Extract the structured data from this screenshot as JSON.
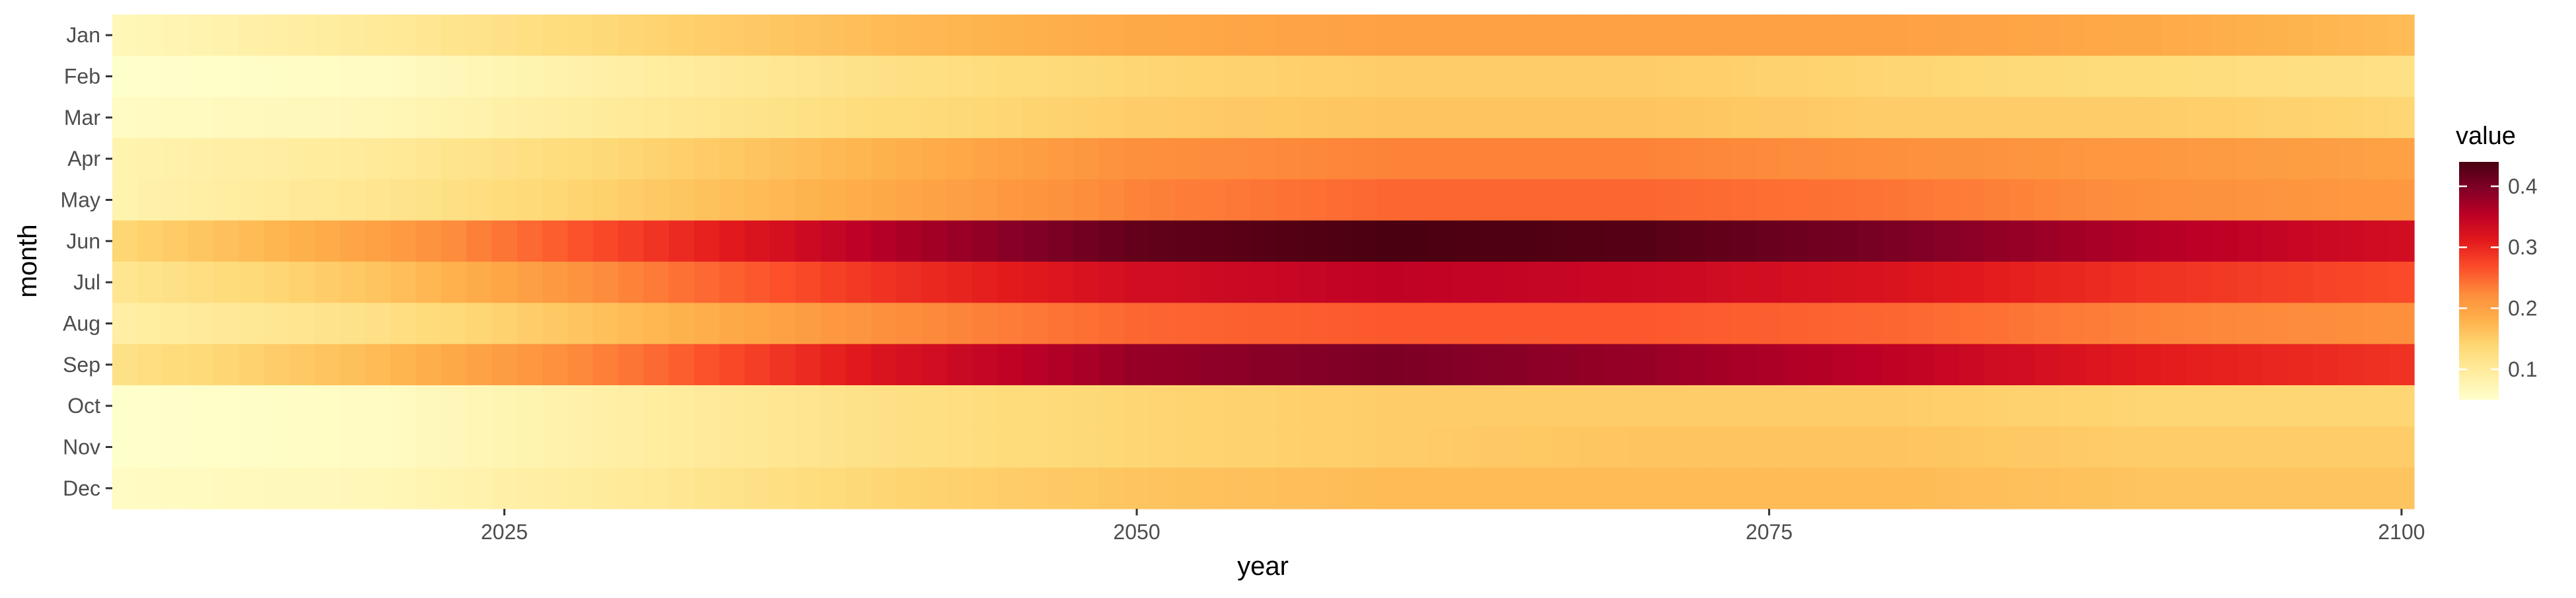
{
  "chart_data": {
    "type": "heatmap",
    "title": "",
    "xlabel": "year",
    "ylabel": "month",
    "xlim": [
      2009.5,
      2100.5
    ],
    "x_ticks": [
      2025,
      2050,
      2075,
      2100
    ],
    "x_tick_labels": [
      "2025",
      "2050",
      "2075",
      "2100"
    ],
    "x_start": 2010,
    "x_end": 2100,
    "months": [
      "Jan",
      "Feb",
      "Mar",
      "Apr",
      "May",
      "Jun",
      "Jul",
      "Aug",
      "Sep",
      "Oct",
      "Nov",
      "Dec"
    ],
    "x_anchor_years": [
      2010,
      2020,
      2030,
      2040,
      2050,
      2060,
      2070,
      2080,
      2090,
      2100
    ],
    "rows": [
      {
        "month": "Jan",
        "values": [
          0.07,
          0.1,
          0.14,
          0.17,
          0.19,
          0.2,
          0.2,
          0.2,
          0.19,
          0.17
        ]
      },
      {
        "month": "Feb",
        "values": [
          0.05,
          0.06,
          0.09,
          0.12,
          0.14,
          0.15,
          0.15,
          0.14,
          0.13,
          0.12
        ]
      },
      {
        "month": "Mar",
        "values": [
          0.06,
          0.07,
          0.1,
          0.13,
          0.15,
          0.16,
          0.16,
          0.15,
          0.15,
          0.14
        ]
      },
      {
        "month": "Apr",
        "values": [
          0.08,
          0.1,
          0.14,
          0.18,
          0.22,
          0.23,
          0.23,
          0.22,
          0.21,
          0.2
        ]
      },
      {
        "month": "May",
        "values": [
          0.08,
          0.11,
          0.15,
          0.19,
          0.23,
          0.25,
          0.25,
          0.24,
          0.22,
          0.21
        ]
      },
      {
        "month": "Jun",
        "values": [
          0.14,
          0.2,
          0.28,
          0.36,
          0.42,
          0.44,
          0.43,
          0.4,
          0.36,
          0.33
        ]
      },
      {
        "month": "Jul",
        "values": [
          0.11,
          0.16,
          0.23,
          0.29,
          0.33,
          0.35,
          0.34,
          0.32,
          0.29,
          0.27
        ]
      },
      {
        "month": "Aug",
        "values": [
          0.09,
          0.12,
          0.17,
          0.22,
          0.25,
          0.26,
          0.26,
          0.25,
          0.23,
          0.22
        ]
      },
      {
        "month": "Sep",
        "values": [
          0.12,
          0.17,
          0.24,
          0.32,
          0.38,
          0.4,
          0.38,
          0.35,
          0.31,
          0.29
        ]
      },
      {
        "month": "Oct",
        "values": [
          0.05,
          0.06,
          0.09,
          0.12,
          0.14,
          0.15,
          0.15,
          0.15,
          0.14,
          0.14
        ]
      },
      {
        "month": "Nov",
        "values": [
          0.05,
          0.06,
          0.09,
          0.12,
          0.14,
          0.15,
          0.16,
          0.16,
          0.15,
          0.15
        ]
      },
      {
        "month": "Dec",
        "values": [
          0.06,
          0.07,
          0.1,
          0.14,
          0.16,
          0.17,
          0.17,
          0.17,
          0.16,
          0.16
        ]
      }
    ],
    "legend": {
      "title": "value",
      "position": "right",
      "min": 0.05,
      "max": 0.44,
      "ticks": [
        0.1,
        0.2,
        0.3,
        0.4
      ],
      "tick_labels": [
        "0.1",
        "0.2",
        "0.3",
        "0.4"
      ]
    },
    "colormap": [
      "#ffffcc",
      "#ffeda0",
      "#fed976",
      "#feb24c",
      "#fd8d3c",
      "#fc4e2a",
      "#e31a1c",
      "#bd0026",
      "#800026",
      "#4a0010"
    ],
    "grid": false
  }
}
